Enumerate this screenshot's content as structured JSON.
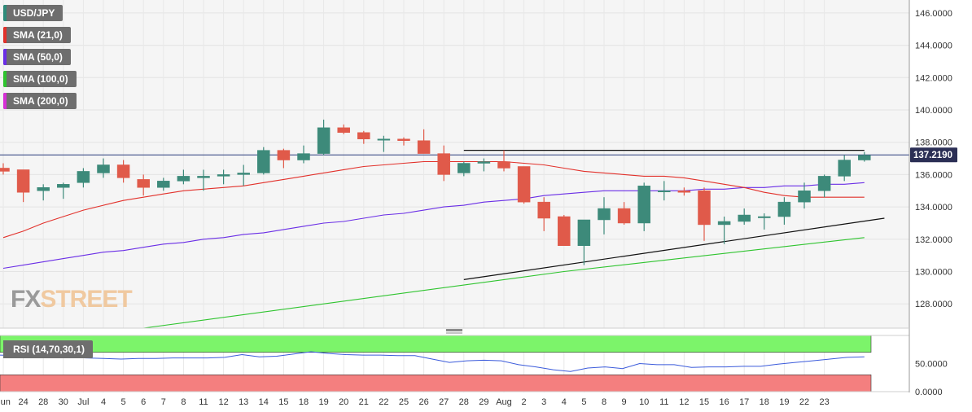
{
  "legend": [
    {
      "label": "USD/JPY",
      "color": "#2e8b7a"
    },
    {
      "label": "SMA (21,0)",
      "color": "#e2312b"
    },
    {
      "label": "SMA (50,0)",
      "color": "#6a2ee6"
    },
    {
      "label": "SMA (100,0)",
      "color": "#2fc42f"
    },
    {
      "label": "SMA (200,0)",
      "color": "#d62fd6"
    }
  ],
  "watermark": {
    "part1": "FX",
    "part2": "STREET"
  },
  "rsi_label": "RSI (14,70,30,1)",
  "colors": {
    "up": "#3d8a7a",
    "down": "#e05a4a",
    "sma21": "#e2312b",
    "sma50": "#6a2ee6",
    "sma100": "#2fc42f",
    "rsi": "#3b5bdb",
    "overbought": "#7cf46a",
    "oversold": "#f47f7f",
    "price_line": "#2a3d7c"
  },
  "chart_data": [
    {
      "type": "candlestick",
      "title": "USD/JPY",
      "ylim": [
        126.5,
        146.8
      ],
      "y_ticks": [
        "146.0000",
        "144.0000",
        "142.0000",
        "140.0000",
        "138.0000",
        "136.0000",
        "134.0000",
        "132.0000",
        "130.0000",
        "128.0000"
      ],
      "x_tick_labels": [
        "Jun",
        "24",
        "28",
        "30",
        "Jul",
        "4",
        "5",
        "6",
        "7",
        "8",
        "11",
        "12",
        "13",
        "14",
        "15",
        "18",
        "19",
        "20",
        "21",
        "22",
        "25",
        "26",
        "27",
        "28",
        "29",
        "Aug",
        "2",
        "3",
        "4",
        "5",
        "8",
        "9",
        "10",
        "11",
        "12",
        "15",
        "16",
        "17",
        "18",
        "19",
        "22",
        "23"
      ],
      "last_price_label": "137.2190",
      "last_price": 137.219,
      "grid": true,
      "legend_position": "top-left",
      "candles": [
        {
          "date": "Jun 22",
          "open": 136.4,
          "high": 136.7,
          "low": 136.0,
          "close": 136.2
        },
        {
          "date": "Jun 23",
          "open": 136.3,
          "high": 136.3,
          "low": 134.3,
          "close": 134.9
        },
        {
          "date": "Jun 24",
          "open": 135.0,
          "high": 135.4,
          "low": 134.4,
          "close": 135.2
        },
        {
          "date": "Jun 27",
          "open": 135.2,
          "high": 135.5,
          "low": 134.5,
          "close": 135.4
        },
        {
          "date": "Jun 28",
          "open": 135.5,
          "high": 136.4,
          "low": 135.2,
          "close": 136.2
        },
        {
          "date": "Jun 29",
          "open": 136.1,
          "high": 137.0,
          "low": 135.8,
          "close": 136.6
        },
        {
          "date": "Jun 30",
          "open": 136.6,
          "high": 136.9,
          "low": 135.5,
          "close": 135.8
        },
        {
          "date": "Jul 1",
          "open": 135.7,
          "high": 136.0,
          "low": 134.7,
          "close": 135.2
        },
        {
          "date": "Jul 4",
          "open": 135.2,
          "high": 135.8,
          "low": 135.0,
          "close": 135.6
        },
        {
          "date": "Jul 5",
          "open": 135.6,
          "high": 136.3,
          "low": 135.4,
          "close": 135.9
        },
        {
          "date": "Jul 6",
          "open": 135.8,
          "high": 136.3,
          "low": 135.0,
          "close": 135.9
        },
        {
          "date": "Jul 7",
          "open": 135.9,
          "high": 136.3,
          "low": 135.4,
          "close": 136.0
        },
        {
          "date": "Jul 8",
          "open": 136.0,
          "high": 136.6,
          "low": 135.3,
          "close": 136.1
        },
        {
          "date": "Jul 11",
          "open": 136.1,
          "high": 137.7,
          "low": 136.0,
          "close": 137.5
        },
        {
          "date": "Jul 12",
          "open": 137.5,
          "high": 137.6,
          "low": 136.4,
          "close": 136.9
        },
        {
          "date": "Jul 13",
          "open": 136.9,
          "high": 137.8,
          "low": 136.7,
          "close": 137.3
        },
        {
          "date": "Jul 14",
          "open": 137.3,
          "high": 139.4,
          "low": 137.2,
          "close": 138.9
        },
        {
          "date": "Jul 15",
          "open": 138.9,
          "high": 139.1,
          "low": 138.5,
          "close": 138.6
        },
        {
          "date": "Jul 18",
          "open": 138.6,
          "high": 138.7,
          "low": 137.9,
          "close": 138.2
        },
        {
          "date": "Jul 19",
          "open": 138.2,
          "high": 138.4,
          "low": 137.4,
          "close": 138.2
        },
        {
          "date": "Jul 20",
          "open": 138.2,
          "high": 138.3,
          "low": 137.8,
          "close": 138.1
        },
        {
          "date": "Jul 21",
          "open": 138.1,
          "high": 138.8,
          "low": 137.3,
          "close": 137.3
        },
        {
          "date": "Jul 22",
          "open": 137.3,
          "high": 137.8,
          "low": 135.6,
          "close": 136.0
        },
        {
          "date": "Jul 25",
          "open": 136.1,
          "high": 136.8,
          "low": 135.9,
          "close": 136.7
        },
        {
          "date": "Jul 26",
          "open": 136.7,
          "high": 137.0,
          "low": 136.2,
          "close": 136.8
        },
        {
          "date": "Jul 27",
          "open": 136.8,
          "high": 137.5,
          "low": 136.2,
          "close": 136.4
        },
        {
          "date": "Jul 28",
          "open": 136.5,
          "high": 136.5,
          "low": 134.2,
          "close": 134.3
        },
        {
          "date": "Jul 29",
          "open": 134.3,
          "high": 134.6,
          "low": 132.5,
          "close": 133.3
        },
        {
          "date": "Aug 1",
          "open": 133.4,
          "high": 133.5,
          "low": 131.6,
          "close": 131.6
        },
        {
          "date": "Aug 2",
          "open": 131.6,
          "high": 133.2,
          "low": 130.4,
          "close": 133.2
        },
        {
          "date": "Aug 3",
          "open": 133.2,
          "high": 134.6,
          "low": 132.3,
          "close": 133.9
        },
        {
          "date": "Aug 4",
          "open": 133.9,
          "high": 134.3,
          "low": 132.9,
          "close": 133.0
        },
        {
          "date": "Aug 5",
          "open": 133.0,
          "high": 135.5,
          "low": 132.5,
          "close": 135.3
        },
        {
          "date": "Aug 8",
          "open": 135.0,
          "high": 135.6,
          "low": 134.4,
          "close": 135.0
        },
        {
          "date": "Aug 9",
          "open": 135.0,
          "high": 135.2,
          "low": 134.7,
          "close": 134.9
        },
        {
          "date": "Aug 10",
          "open": 135.0,
          "high": 135.2,
          "low": 131.9,
          "close": 132.9
        },
        {
          "date": "Aug 11",
          "open": 132.9,
          "high": 133.4,
          "low": 131.7,
          "close": 133.1
        },
        {
          "date": "Aug 12",
          "open": 133.1,
          "high": 133.9,
          "low": 132.9,
          "close": 133.5
        },
        {
          "date": "Aug 15",
          "open": 133.4,
          "high": 133.6,
          "low": 132.6,
          "close": 133.4
        },
        {
          "date": "Aug 16",
          "open": 133.4,
          "high": 134.6,
          "low": 132.9,
          "close": 134.3
        },
        {
          "date": "Aug 17",
          "open": 134.3,
          "high": 135.5,
          "low": 133.9,
          "close": 135.0
        },
        {
          "date": "Aug 18",
          "open": 135.0,
          "high": 136.0,
          "low": 134.6,
          "close": 135.9
        },
        {
          "date": "Aug 19",
          "open": 135.9,
          "high": 137.2,
          "low": 135.6,
          "close": 136.9
        },
        {
          "date": "Aug 22",
          "open": 136.9,
          "high": 137.4,
          "low": 136.8,
          "close": 137.2
        }
      ],
      "sma21": [
        132.1,
        132.5,
        133.0,
        133.4,
        133.8,
        134.1,
        134.4,
        134.6,
        134.8,
        135.0,
        135.1,
        135.2,
        135.3,
        135.5,
        135.7,
        135.9,
        136.1,
        136.3,
        136.5,
        136.6,
        136.7,
        136.8,
        136.8,
        136.8,
        136.8,
        136.8,
        136.7,
        136.6,
        136.4,
        136.2,
        136.1,
        136.0,
        135.9,
        135.9,
        135.8,
        135.6,
        135.4,
        135.2,
        134.9,
        134.7,
        134.6,
        134.6,
        134.6,
        134.6
      ],
      "sma50": [
        130.2,
        130.4,
        130.6,
        130.8,
        131.0,
        131.2,
        131.3,
        131.5,
        131.7,
        131.8,
        132.0,
        132.1,
        132.3,
        132.4,
        132.6,
        132.8,
        133.0,
        133.1,
        133.3,
        133.5,
        133.6,
        133.8,
        134.0,
        134.1,
        134.3,
        134.4,
        134.5,
        134.7,
        134.8,
        134.9,
        135.0,
        135.0,
        135.0,
        135.0,
        135.0,
        135.1,
        135.1,
        135.2,
        135.2,
        135.3,
        135.3,
        135.4,
        135.4,
        135.5
      ],
      "sma100": [
        {
          "date": "Jul 1",
          "value": 126.5
        },
        {
          "date": "Aug 1",
          "value": 130.0
        },
        {
          "date": "Aug 22",
          "value": 132.1
        }
      ],
      "resistance_line": [
        {
          "date": "Jul 25",
          "value": 137.5
        },
        {
          "date": "Aug 22",
          "value": 137.5
        }
      ],
      "support_line": [
        {
          "date": "Jul 25",
          "value": 129.5
        },
        {
          "date": "Aug 23",
          "value": 133.3
        }
      ]
    },
    {
      "type": "line",
      "title": "RSI (14,70,30,1)",
      "ylim": [
        0,
        100
      ],
      "y_ticks": [
        "50.0000",
        "0.0000"
      ],
      "overbought": 70,
      "oversold": 30,
      "values": [
        65,
        64,
        63,
        62,
        61,
        60,
        59,
        58,
        59,
        59,
        60,
        60,
        60,
        61,
        66,
        62,
        63,
        67,
        71,
        68,
        66,
        65,
        65,
        64,
        64,
        58,
        52,
        55,
        56,
        55,
        48,
        44,
        39,
        36,
        42,
        44,
        41,
        50,
        48,
        48,
        43,
        44,
        44,
        45,
        45,
        49,
        52,
        55,
        58,
        61,
        62
      ]
    }
  ]
}
